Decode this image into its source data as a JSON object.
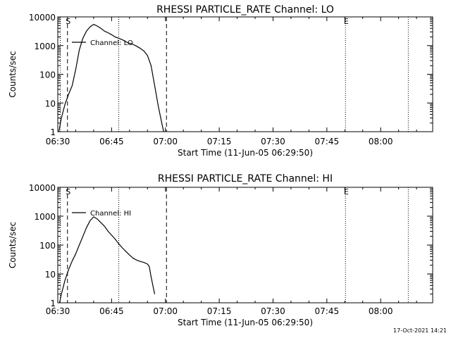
{
  "chart_data": [
    {
      "type": "line",
      "title": "RHESSI PARTICLE_RATE Channel: LO",
      "xlabel": "Start Time (11-Jun-05 06:29:50)",
      "ylabel": "Counts/sec",
      "x_tick_labels": [
        "06:30",
        "06:45",
        "07:00",
        "07:15",
        "07:30",
        "07:45",
        "08:00"
      ],
      "x_tick_minutes": [
        0,
        15,
        30,
        45,
        60,
        75,
        90
      ],
      "x_range_minutes": [
        0,
        104.5
      ],
      "y_tick_labels": [
        "1",
        "10",
        "100",
        "1000",
        "10000"
      ],
      "y_scale": "log",
      "ylim": [
        1,
        10000
      ],
      "legend": {
        "label": "Channel: LO",
        "placement": "top-left"
      },
      "markers": [
        {
          "label": "S",
          "minute": 2.7,
          "style": "dashed"
        },
        {
          "label": "",
          "minute": 30.3,
          "style": "dashed"
        },
        {
          "label": "E",
          "minute": 80.2,
          "style": "dotted"
        },
        {
          "label": "",
          "minute": 0.7,
          "style": "dotted"
        },
        {
          "label": "",
          "minute": 17.0,
          "style": "dotted"
        },
        {
          "label": "",
          "minute": 97.7,
          "style": "dotted"
        }
      ],
      "series": [
        {
          "name": "Channel: LO",
          "x": [
            0.3,
            1.0,
            2.0,
            3.0,
            4.0,
            5.0,
            6.0,
            7.0,
            8.0,
            9.0,
            10.0,
            11.0,
            12.0,
            13.0,
            14.0,
            15.0,
            16.0,
            17.0,
            18.0,
            19.0,
            20.0,
            21.0,
            22.0,
            23.0,
            24.0,
            25.0,
            26.0,
            27.0,
            28.0,
            29.0,
            29.5
          ],
          "y": [
            1.0,
            3.0,
            9.0,
            20.0,
            40.0,
            150.0,
            700.0,
            1800.0,
            3200.0,
            4500.0,
            5500.0,
            4800.0,
            4000.0,
            3200.0,
            2800.0,
            2400.0,
            2000.0,
            1800.0,
            1600.0,
            1350.0,
            1200.0,
            1100.0,
            950.0,
            800.0,
            650.0,
            450.0,
            200.0,
            40.0,
            8.0,
            2.0,
            1.0
          ]
        }
      ]
    },
    {
      "type": "line",
      "title": "RHESSI PARTICLE_RATE Channel: HI",
      "xlabel": "Start Time (11-Jun-05 06:29:50)",
      "ylabel": "Counts/sec",
      "x_tick_labels": [
        "06:30",
        "06:45",
        "07:00",
        "07:15",
        "07:30",
        "07:45",
        "08:00"
      ],
      "x_tick_minutes": [
        0,
        15,
        30,
        45,
        60,
        75,
        90
      ],
      "x_range_minutes": [
        0,
        104.5
      ],
      "y_tick_labels": [
        "1",
        "10",
        "100",
        "1000",
        "10000"
      ],
      "y_scale": "log",
      "ylim": [
        1,
        10000
      ],
      "legend": {
        "label": "Channel: HI",
        "placement": "top-left"
      },
      "markers": [
        {
          "label": "S",
          "minute": 2.7,
          "style": "dashed"
        },
        {
          "label": "",
          "minute": 30.3,
          "style": "dashed"
        },
        {
          "label": "E",
          "minute": 80.2,
          "style": "dotted"
        },
        {
          "label": "",
          "minute": 0.7,
          "style": "dotted"
        },
        {
          "label": "",
          "minute": 17.0,
          "style": "dotted"
        },
        {
          "label": "",
          "minute": 97.7,
          "style": "dotted"
        }
      ],
      "series": [
        {
          "name": "Channel: HI",
          "x": [
            0.5,
            1.0,
            2.0,
            3.0,
            4.0,
            5.0,
            6.0,
            7.0,
            8.0,
            9.0,
            10.0,
            11.0,
            12.0,
            13.0,
            14.0,
            15.0,
            16.0,
            17.0,
            18.0,
            19.0,
            20.0,
            21.0,
            22.0,
            23.0,
            24.0,
            25.0,
            25.5,
            26.0,
            26.5,
            27.0
          ],
          "y": [
            1.0,
            2.0,
            6.0,
            14.0,
            28.0,
            50.0,
            100.0,
            200.0,
            400.0,
            700.0,
            950.0,
            800.0,
            600.0,
            450.0,
            300.0,
            220.0,
            160.0,
            110.0,
            80.0,
            60.0,
            45.0,
            35.0,
            30.0,
            27.0,
            25.0,
            22.0,
            18.0,
            8.0,
            4.0,
            2.0
          ]
        }
      ]
    }
  ],
  "timestamp": "17-Oct-2021 14:21"
}
